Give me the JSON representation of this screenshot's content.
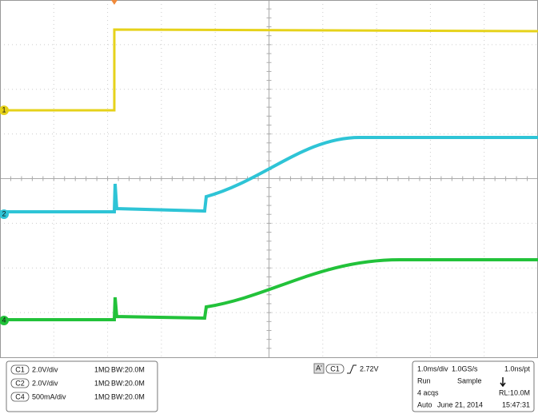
{
  "channels": [
    {
      "id": "C1",
      "scale": "2.0V/div",
      "impedance": "1MΩ",
      "bandwidth": "BW:20.0M",
      "marker": "1"
    },
    {
      "id": "C2",
      "scale": "2.0V/div",
      "impedance": "1MΩ",
      "bandwidth": "BW:20.0M",
      "marker": "2"
    },
    {
      "id": "C4",
      "scale": "500mA/div",
      "impedance": "1MΩ",
      "bandwidth": "BW:20.0M",
      "marker": "4"
    }
  ],
  "trigger": {
    "label": "A'",
    "source": "C1",
    "level": "2.72V"
  },
  "acquisition": {
    "timebase": "1.0ms/div",
    "sample_rate": "1.0GS/s",
    "resolution": "1.0ns/pt",
    "state": "Run",
    "mode": "Sample",
    "acqs": "4 acqs",
    "record_length": "RL:10.0M",
    "trigger_mode": "Auto",
    "date": "June 21, 2014",
    "time": "15:47:31"
  }
}
